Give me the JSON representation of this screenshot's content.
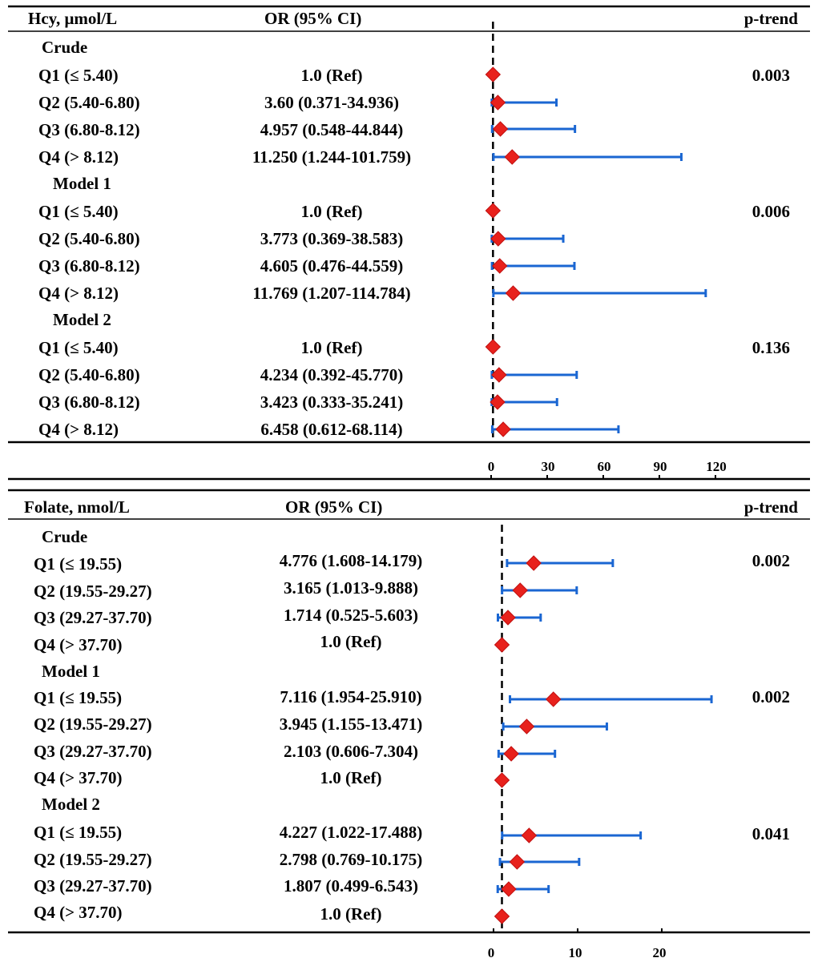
{
  "chart_data": [
    {
      "type": "forest",
      "header": {
        "exposure": "Hcy, μmol/L",
        "or_ci": "OR (95% CI)",
        "p_trend": "p-trend"
      },
      "x_ticks": [
        "0",
        "30",
        "60",
        "90",
        "120"
      ],
      "xlim": [
        0,
        120
      ],
      "reference_line": 1,
      "marker_color": "#e8211c",
      "ci_color": "#1a66d2",
      "groups": [
        {
          "model": "Crude",
          "p_trend": "0.003",
          "rows": [
            {
              "label": "Q1 (≤ 5.40)",
              "or_text": "1.0 (Ref)",
              "or": 1.0,
              "lo": 1.0,
              "hi": 1.0
            },
            {
              "label": "Q2 (5.40-6.80)",
              "or_text": "3.60 (0.371-34.936)",
              "or": 3.6,
              "lo": 0.371,
              "hi": 34.936
            },
            {
              "label": "Q3 (6.80-8.12)",
              "or_text": "4.957 (0.548-44.844)",
              "or": 4.957,
              "lo": 0.548,
              "hi": 44.844
            },
            {
              "label": "Q4 (> 8.12)",
              "or_text": "11.250 (1.244-101.759)",
              "or": 11.25,
              "lo": 1.244,
              "hi": 101.759
            }
          ]
        },
        {
          "model": "Model 1",
          "p_trend": "0.006",
          "rows": [
            {
              "label": "Q1 (≤ 5.40)",
              "or_text": "1.0 (Ref)",
              "or": 1.0,
              "lo": 1.0,
              "hi": 1.0
            },
            {
              "label": "Q2 (5.40-6.80)",
              "or_text": "3.773 (0.369-38.583)",
              "or": 3.773,
              "lo": 0.369,
              "hi": 38.583
            },
            {
              "label": "Q3 (6.80-8.12)",
              "or_text": "4.605 (0.476-44.559)",
              "or": 4.605,
              "lo": 0.476,
              "hi": 44.559
            },
            {
              "label": "Q4 (> 8.12)",
              "or_text": "11.769 (1.207-114.784)",
              "or": 11.769,
              "lo": 1.207,
              "hi": 114.784
            }
          ]
        },
        {
          "model": "Model 2",
          "p_trend": "0.136",
          "rows": [
            {
              "label": "Q1 (≤ 5.40)",
              "or_text": "1.0 (Ref)",
              "or": 1.0,
              "lo": 1.0,
              "hi": 1.0
            },
            {
              "label": "Q2 (5.40-6.80)",
              "or_text": "4.234 (0.392-45.770)",
              "or": 4.234,
              "lo": 0.392,
              "hi": 45.77
            },
            {
              "label": "Q3 (6.80-8.12)",
              "or_text": "3.423 (0.333-35.241)",
              "or": 3.423,
              "lo": 0.333,
              "hi": 35.241
            },
            {
              "label": "Q4 (> 8.12)",
              "or_text": "6.458 (0.612-68.114)",
              "or": 6.458,
              "lo": 0.612,
              "hi": 68.114
            }
          ]
        }
      ]
    },
    {
      "type": "forest",
      "header": {
        "exposure": "Folate, nmol/L",
        "or_ci": "OR (95% CI)",
        "p_trend": "p-trend"
      },
      "x_ticks": [
        "0",
        "10",
        "20"
      ],
      "xlim": [
        0,
        20
      ],
      "reference_line": 1,
      "marker_color": "#e8211c",
      "ci_color": "#1a66d2",
      "groups": [
        {
          "model": "Crude",
          "p_trend": "0.002",
          "rows": [
            {
              "label": "Q1 (≤ 19.55)",
              "or_text": "4.776 (1.608-14.179)",
              "or": 4.776,
              "lo": 1.608,
              "hi": 14.179
            },
            {
              "label": "Q2 (19.55-29.27)",
              "or_text": "3.165 (1.013-9.888)",
              "or": 3.165,
              "lo": 1.013,
              "hi": 9.888
            },
            {
              "label": "Q3 (29.27-37.70)",
              "or_text": "1.714 (0.525-5.603)",
              "or": 1.714,
              "lo": 0.525,
              "hi": 5.603
            },
            {
              "label": "Q4 (> 37.70)",
              "or_text": "1.0 (Ref)",
              "or": 1.0,
              "lo": 1.0,
              "hi": 1.0
            }
          ]
        },
        {
          "model": "Model 1",
          "p_trend": "0.002",
          "rows": [
            {
              "label": "Q1 (≤ 19.55)",
              "or_text": "7.116 (1.954-25.910)",
              "or": 7.116,
              "lo": 1.954,
              "hi": 25.91
            },
            {
              "label": "Q2 (19.55-29.27)",
              "or_text": "3.945 (1.155-13.471)",
              "or": 3.945,
              "lo": 1.155,
              "hi": 13.471
            },
            {
              "label": "Q3 (29.27-37.70)",
              "or_text": "2.103 (0.606-7.304)",
              "or": 2.103,
              "lo": 0.606,
              "hi": 7.304
            },
            {
              "label": "Q4 (> 37.70)",
              "or_text": "1.0 (Ref)",
              "or": 1.0,
              "lo": 1.0,
              "hi": 1.0
            }
          ]
        },
        {
          "model": "Model 2",
          "p_trend": "0.041",
          "rows": [
            {
              "label": "Q1 (≤ 19.55)",
              "or_text": "4.227 (1.022-17.488)",
              "or": 4.227,
              "lo": 1.022,
              "hi": 17.488
            },
            {
              "label": "Q2 (19.55-29.27)",
              "or_text": "2.798 (0.769-10.175)",
              "or": 2.798,
              "lo": 0.769,
              "hi": 10.175
            },
            {
              "label": "Q3 (29.27-37.70)",
              "or_text": "1.807 (0.499-6.543)",
              "or": 1.807,
              "lo": 0.499,
              "hi": 6.543
            },
            {
              "label": "Q4 (> 37.70)",
              "or_text": "1.0 (Ref)",
              "or": 1.0,
              "lo": 1.0,
              "hi": 1.0
            }
          ]
        }
      ]
    }
  ]
}
